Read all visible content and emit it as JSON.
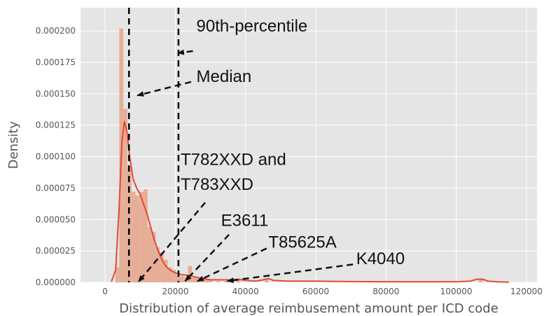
{
  "chart_data": {
    "type": "bar",
    "xlabel": "Distribution of average reimbusement amount per ICD code",
    "ylabel": "Density",
    "xlim": [
      -7000,
      123000
    ],
    "ylim": [
      0,
      0.0002185
    ],
    "x_ticks": [
      0,
      20000,
      40000,
      60000,
      80000,
      100000,
      120000
    ],
    "x_tick_labels": [
      "0",
      "20000",
      "40000",
      "60000",
      "80000",
      "100000",
      "120000"
    ],
    "y_ticks": [
      0,
      2.5e-05,
      5e-05,
      7.5e-05,
      0.0001,
      0.000125,
      0.00015,
      0.000175,
      0.0002
    ],
    "y_tick_labels": [
      "0.000000",
      "0.000025",
      "0.000050",
      "0.000075",
      "0.000100",
      "0.000125",
      "0.000150",
      "0.000175",
      "0.000200"
    ],
    "grid": true,
    "histogram": {
      "bin_width": 1150,
      "bins": [
        {
          "x": 2900,
          "y": 1.2e-05
        },
        {
          "x": 4050,
          "y": 0.000202
        },
        {
          "x": 5200,
          "y": 0.000138
        },
        {
          "x": 6350,
          "y": 9.2e-05
        },
        {
          "x": 7500,
          "y": 7.2e-05
        },
        {
          "x": 8650,
          "y": 6.9e-05
        },
        {
          "x": 9800,
          "y": 7.2e-05
        },
        {
          "x": 10950,
          "y": 7.4e-05
        },
        {
          "x": 12100,
          "y": 4.4e-05
        },
        {
          "x": 13250,
          "y": 4e-05
        },
        {
          "x": 14400,
          "y": 2.8e-05
        },
        {
          "x": 15550,
          "y": 2.4e-05
        },
        {
          "x": 16700,
          "y": 1.8e-05
        },
        {
          "x": 17850,
          "y": 1.2e-05
        },
        {
          "x": 19000,
          "y": 1e-05
        },
        {
          "x": 20150,
          "y": 6e-06
        },
        {
          "x": 21300,
          "y": 5e-06
        },
        {
          "x": 22450,
          "y": 4e-06
        },
        {
          "x": 23600,
          "y": 1.3e-05
        },
        {
          "x": 24750,
          "y": 4e-06
        },
        {
          "x": 25900,
          "y": 3e-06
        },
        {
          "x": 27050,
          "y": 3e-06
        },
        {
          "x": 28200,
          "y": 2e-06
        },
        {
          "x": 29350,
          "y": 2e-06
        },
        {
          "x": 31650,
          "y": 1e-06
        },
        {
          "x": 33950,
          "y": 1e-06
        },
        {
          "x": 37400,
          "y": 2e-06
        },
        {
          "x": 45450,
          "y": 2e-06
        },
        {
          "x": 106400,
          "y": 2e-06
        }
      ]
    },
    "kde": {
      "x": [
        1800,
        3000,
        4000,
        4800,
        5500,
        6200,
        7000,
        8000,
        9000,
        10000,
        11000,
        12000,
        13000,
        14000,
        15000,
        16000,
        17000,
        18000,
        19000,
        20000,
        22000,
        24000,
        26000,
        28000,
        30000,
        33000,
        36000,
        38000,
        40000,
        43000,
        45000,
        46500,
        48000,
        52000,
        56000,
        60000,
        65000,
        70000,
        80000,
        90000,
        100000,
        104000,
        106000,
        107500,
        109000,
        112000,
        115000
      ],
      "y": [
        5e-07,
        1e-05,
        6e-05,
        0.000112,
        0.000128,
        0.00012,
        0.0001,
        8.2e-05,
        7.5e-05,
        7e-05,
        6.2e-05,
        5.4e-05,
        4.4e-05,
        3.4e-05,
        2.6e-05,
        1.9e-05,
        1.4e-05,
        1.1e-05,
        9e-06,
        7.5e-06,
        6e-06,
        5.5e-06,
        4e-06,
        3e-06,
        2e-06,
        2e-06,
        2e-06,
        2.5e-06,
        1.5e-06,
        1e-06,
        2e-06,
        3e-06,
        1.5e-06,
        1e-06,
        1e-06,
        1e-06,
        8e-07,
        6e-07,
        5e-07,
        5e-07,
        5e-07,
        1e-06,
        2.5e-06,
        2.5e-06,
        1e-06,
        4e-07,
        1e-07
      ]
    },
    "vlines": [
      {
        "name": "Median",
        "x": 6800
      },
      {
        "name": "90th-percentile",
        "x": 20900
      }
    ],
    "annotations": [
      {
        "text": "90th-percentile",
        "x": 26000,
        "y": 0.0001995,
        "arrow_from": [
          25000,
          0.000184
        ],
        "arrow_to": [
          20700,
          0.0001824
        ]
      },
      {
        "text": "Median",
        "x": 26000,
        "y": 0.0001595,
        "arrow_from": [
          24500,
          0.0001595
        ],
        "arrow_to": [
          9200,
          0.0001487
        ]
      },
      {
        "text": "T782XXD and",
        "x": 21500,
        "y": 9.35e-05
      },
      {
        "text": "T783XXD",
        "x": 21500,
        "y": 7.35e-05,
        "arrow_from": [
          28500,
          6.35e-05
        ],
        "arrow_to": [
          9500,
          5e-07
        ]
      },
      {
        "text": "E3611",
        "x": 33000,
        "y": 4.5e-05,
        "arrow_from": [
          35300,
          3.8e-05
        ],
        "arrow_to": [
          22800,
          1e-06
        ]
      },
      {
        "text": "T85625A",
        "x": 46500,
        "y": 2.75e-05,
        "arrow_from": [
          46000,
          2.7e-05
        ],
        "arrow_to": [
          26300,
          1e-06
        ]
      },
      {
        "text": "K4040",
        "x": 71500,
        "y": 1.45e-05,
        "arrow_from": [
          70600,
          1.43e-05
        ],
        "arrow_to": [
          34800,
          1e-06
        ]
      }
    ],
    "colors": {
      "background": "#e5e5e5",
      "grid": "#ffffff",
      "bar": "#e6a78e",
      "kde": "#e24a33",
      "vline": "#000000",
      "text": "#111111",
      "tick": "#555555"
    }
  }
}
